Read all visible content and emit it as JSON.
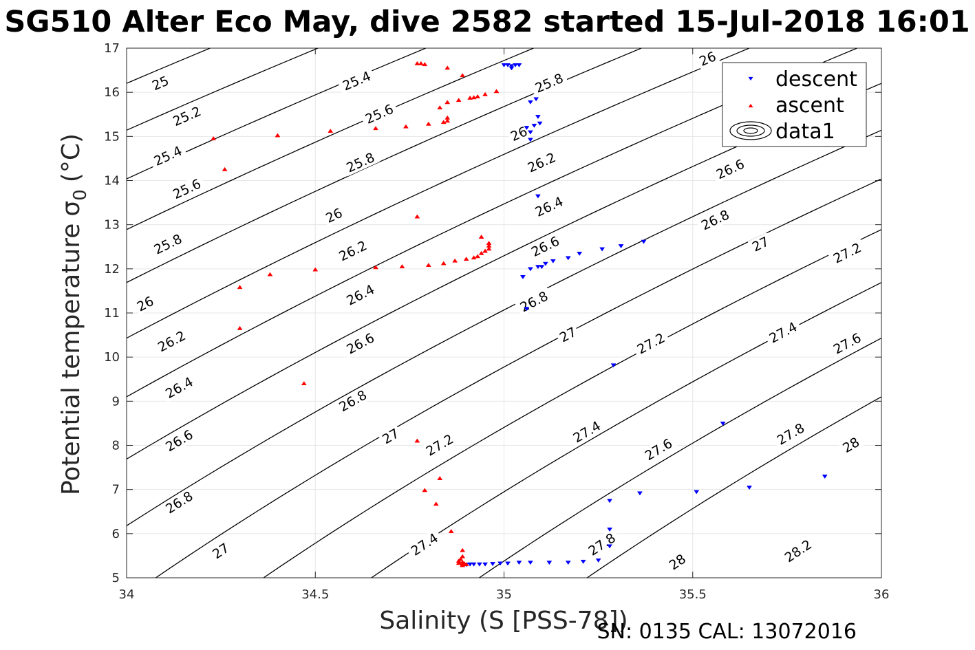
{
  "chart_data": {
    "type": "scatter",
    "title": "SG510 Alter Eco May, dive 2582 started 15-Jul-2018 16:01",
    "xlabel": "Salinity (S [PSS-78])",
    "ylabel": "Potential temperature σ₀ (°C)",
    "ylabel_main": "Potential temperature",
    "ylabel_sigma": "σ",
    "ylabel_sub": "0",
    "ylabel_unit": "(°C)",
    "footer": "SN: 0135  CAL: 13072016",
    "xlim": [
      34,
      36
    ],
    "ylim": [
      5,
      17
    ],
    "xticks": [
      34,
      34.5,
      35,
      35.5,
      36
    ],
    "xtick_labels": [
      "34",
      "34.5",
      "35",
      "35.5",
      "36"
    ],
    "yticks": [
      5,
      6,
      7,
      8,
      9,
      10,
      11,
      12,
      13,
      14,
      15,
      16,
      17
    ],
    "ytick_labels": [
      "5",
      "6",
      "7",
      "8",
      "9",
      "10",
      "11",
      "12",
      "13",
      "14",
      "15",
      "16",
      "17"
    ],
    "grid": true,
    "legend_position": "top-right",
    "legend": [
      {
        "label": "descent",
        "marker": "triangle-down",
        "color": "#0000ff"
      },
      {
        "label": "ascent",
        "marker": "triangle-up",
        "color": "#ff0000"
      },
      {
        "label": "data1",
        "marker": "contour",
        "color": "#000000"
      }
    ],
    "contours": {
      "levels": [
        25,
        25.2,
        25.4,
        25.6,
        25.8,
        26,
        26.2,
        26.4,
        26.6,
        26.8,
        27,
        27.2,
        27.4,
        27.6,
        27.8,
        28,
        28.2
      ],
      "labels": [
        {
          "text": "25",
          "s": 34.09,
          "t": 16.2
        },
        {
          "text": "25.2",
          "s": 34.16,
          "t": 15.45
        },
        {
          "text": "25.4",
          "s": 34.11,
          "t": 14.55
        },
        {
          "text": "25.6",
          "s": 34.16,
          "t": 13.8
        },
        {
          "text": "25.8",
          "s": 34.11,
          "t": 12.55
        },
        {
          "text": "26",
          "s": 34.05,
          "t": 11.2
        },
        {
          "text": "26.2",
          "s": 34.12,
          "t": 10.35
        },
        {
          "text": "26.4",
          "s": 34.14,
          "t": 9.3
        },
        {
          "text": "26.6",
          "s": 34.14,
          "t": 8.1
        },
        {
          "text": "26.8",
          "s": 34.14,
          "t": 6.7
        },
        {
          "text": "27",
          "s": 34.25,
          "t": 5.6
        },
        {
          "text": "25.4",
          "s": 34.61,
          "t": 16.25
        },
        {
          "text": "25.6",
          "s": 34.67,
          "t": 15.5
        },
        {
          "text": "25.8",
          "s": 34.62,
          "t": 14.4
        },
        {
          "text": "26",
          "s": 34.55,
          "t": 13.2
        },
        {
          "text": "26.2",
          "s": 34.6,
          "t": 12.4
        },
        {
          "text": "26.4",
          "s": 34.62,
          "t": 11.4
        },
        {
          "text": "26.6",
          "s": 34.62,
          "t": 10.3
        },
        {
          "text": "26.8",
          "s": 34.6,
          "t": 9.0
        },
        {
          "text": "27",
          "s": 34.7,
          "t": 8.2
        },
        {
          "text": "27.2",
          "s": 34.83,
          "t": 8.0
        },
        {
          "text": "27.4",
          "s": 34.79,
          "t": 5.75
        },
        {
          "text": "25.8",
          "s": 35.12,
          "t": 16.2
        },
        {
          "text": "26",
          "s": 35.04,
          "t": 15.05
        },
        {
          "text": "26.2",
          "s": 35.1,
          "t": 14.4
        },
        {
          "text": "26.4",
          "s": 35.12,
          "t": 13.4
        },
        {
          "text": "26.6",
          "s": 35.11,
          "t": 12.5
        },
        {
          "text": "26.8",
          "s": 35.08,
          "t": 11.25
        },
        {
          "text": "27",
          "s": 35.17,
          "t": 10.5
        },
        {
          "text": "27.2",
          "s": 35.39,
          "t": 10.3
        },
        {
          "text": "27.4",
          "s": 35.22,
          "t": 8.3
        },
        {
          "text": "27.6",
          "s": 35.41,
          "t": 7.9
        },
        {
          "text": "27.8",
          "s": 35.26,
          "t": 5.75
        },
        {
          "text": "28",
          "s": 35.46,
          "t": 5.35
        },
        {
          "text": "26",
          "s": 35.54,
          "t": 16.75
        },
        {
          "text": "26.6",
          "s": 35.6,
          "t": 14.25
        },
        {
          "text": "26.8",
          "s": 35.56,
          "t": 13.1
        },
        {
          "text": "27",
          "s": 35.68,
          "t": 12.55
        },
        {
          "text": "27.2",
          "s": 35.91,
          "t": 12.35
        },
        {
          "text": "27.4",
          "s": 35.74,
          "t": 10.55
        },
        {
          "text": "27.6",
          "s": 35.91,
          "t": 10.3
        },
        {
          "text": "27.8",
          "s": 35.76,
          "t": 8.25
        },
        {
          "text": "28",
          "s": 35.92,
          "t": 8.0
        },
        {
          "text": "28.2",
          "s": 35.78,
          "t": 5.6
        }
      ]
    },
    "series": [
      {
        "name": "descent",
        "marker": "triangle-down",
        "color": "#0000ff",
        "points": [
          [
            35.0,
            16.62
          ],
          [
            35.01,
            16.62
          ],
          [
            35.02,
            16.6
          ],
          [
            35.03,
            16.62
          ],
          [
            35.04,
            16.62
          ],
          [
            35.02,
            16.55
          ],
          [
            35.085,
            15.85
          ],
          [
            35.07,
            15.78
          ],
          [
            35.09,
            15.45
          ],
          [
            35.095,
            15.3
          ],
          [
            35.08,
            15.25
          ],
          [
            35.06,
            15.2
          ],
          [
            35.07,
            15.1
          ],
          [
            35.07,
            14.93
          ],
          [
            35.09,
            13.65
          ],
          [
            35.37,
            12.62
          ],
          [
            35.31,
            12.52
          ],
          [
            35.26,
            12.45
          ],
          [
            35.2,
            12.35
          ],
          [
            35.17,
            12.25
          ],
          [
            35.13,
            12.18
          ],
          [
            35.11,
            12.12
          ],
          [
            35.1,
            12.05
          ],
          [
            35.09,
            12.05
          ],
          [
            35.07,
            12.0
          ],
          [
            35.05,
            11.82
          ],
          [
            35.06,
            11.1
          ],
          [
            35.29,
            9.82
          ],
          [
            35.58,
            8.5
          ],
          [
            35.85,
            7.3
          ],
          [
            35.65,
            7.05
          ],
          [
            35.51,
            6.95
          ],
          [
            35.36,
            6.92
          ],
          [
            35.28,
            6.75
          ],
          [
            35.28,
            6.1
          ],
          [
            35.28,
            5.72
          ],
          [
            35.25,
            5.4
          ],
          [
            35.21,
            5.37
          ],
          [
            35.17,
            5.35
          ],
          [
            35.12,
            5.35
          ],
          [
            35.07,
            5.35
          ],
          [
            35.04,
            5.35
          ],
          [
            35.01,
            5.33
          ],
          [
            34.99,
            5.33
          ],
          [
            34.97,
            5.32
          ],
          [
            34.95,
            5.31
          ],
          [
            34.935,
            5.31
          ],
          [
            34.92,
            5.31
          ],
          [
            34.91,
            5.31
          ],
          [
            34.9,
            5.3
          ]
        ]
      },
      {
        "name": "ascent",
        "marker": "triangle-up",
        "color": "#ff0000",
        "points": [
          [
            34.77,
            16.65
          ],
          [
            34.78,
            16.65
          ],
          [
            34.79,
            16.63
          ],
          [
            34.85,
            16.55
          ],
          [
            34.89,
            16.38
          ],
          [
            34.98,
            16.02
          ],
          [
            34.95,
            15.95
          ],
          [
            34.93,
            15.9
          ],
          [
            34.92,
            15.88
          ],
          [
            34.91,
            15.87
          ],
          [
            34.88,
            15.82
          ],
          [
            34.85,
            15.77
          ],
          [
            34.83,
            15.65
          ],
          [
            34.85,
            15.42
          ],
          [
            34.85,
            15.35
          ],
          [
            34.84,
            15.32
          ],
          [
            34.8,
            15.28
          ],
          [
            34.74,
            15.22
          ],
          [
            34.66,
            15.18
          ],
          [
            34.54,
            15.12
          ],
          [
            34.4,
            15.02
          ],
          [
            34.23,
            14.95
          ],
          [
            34.26,
            14.25
          ],
          [
            34.77,
            13.18
          ],
          [
            34.94,
            12.72
          ],
          [
            34.96,
            12.58
          ],
          [
            34.96,
            12.52
          ],
          [
            34.96,
            12.45
          ],
          [
            34.95,
            12.4
          ],
          [
            34.94,
            12.35
          ],
          [
            34.93,
            12.28
          ],
          [
            34.92,
            12.25
          ],
          [
            34.9,
            12.22
          ],
          [
            34.87,
            12.18
          ],
          [
            34.84,
            12.12
          ],
          [
            34.8,
            12.08
          ],
          [
            34.73,
            12.05
          ],
          [
            34.66,
            12.03
          ],
          [
            34.5,
            11.98
          ],
          [
            34.38,
            11.87
          ],
          [
            34.3,
            11.58
          ],
          [
            34.3,
            10.65
          ],
          [
            34.47,
            9.4
          ],
          [
            34.77,
            8.1
          ],
          [
            34.83,
            7.25
          ],
          [
            34.79,
            6.98
          ],
          [
            34.82,
            6.67
          ],
          [
            34.86,
            6.05
          ],
          [
            34.89,
            5.62
          ],
          [
            34.89,
            5.48
          ],
          [
            34.885,
            5.42
          ],
          [
            34.88,
            5.38
          ],
          [
            34.89,
            5.35
          ],
          [
            34.88,
            5.33
          ],
          [
            34.895,
            5.32
          ],
          [
            34.9,
            5.3
          ],
          [
            34.89,
            5.3
          ],
          [
            34.89,
            5.28
          ]
        ]
      }
    ]
  }
}
